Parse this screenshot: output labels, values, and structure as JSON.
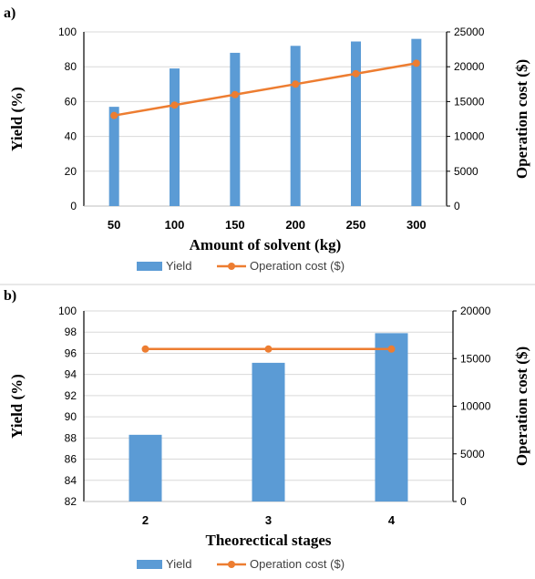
{
  "colors": {
    "bar": "#5b9bd5",
    "line": "#ed7d31",
    "grid": "#d9d9d9",
    "axis": "#000000"
  },
  "chart_data": [
    {
      "panel_label": "a)",
      "type": "bar",
      "categories": [
        "50",
        "100",
        "150",
        "200",
        "250",
        "300"
      ],
      "series": [
        {
          "name": "Yield",
          "type": "bar",
          "axis": "left",
          "values": [
            57,
            79,
            88,
            92,
            94.5,
            96
          ]
        },
        {
          "name": "Operation cost ($)",
          "type": "line",
          "axis": "right",
          "values": [
            13000,
            14500,
            16000,
            17500,
            19000,
            20500
          ]
        }
      ],
      "xlabel": "Amount of solvent (kg)",
      "ylabel": "Yield (%)",
      "y2label": "Operation cost ($)",
      "ylim": [
        0,
        100
      ],
      "y2lim": [
        0,
        25000
      ],
      "yticks": [
        "0",
        "20",
        "40",
        "60",
        "80",
        "100"
      ],
      "y2ticks": [
        "0",
        "5000",
        "10000",
        "15000",
        "20000",
        "25000"
      ],
      "grid": true,
      "legend": "bottom"
    },
    {
      "panel_label": "b)",
      "type": "bar",
      "categories": [
        "2",
        "3",
        "4"
      ],
      "series": [
        {
          "name": "Yield",
          "type": "bar",
          "axis": "left",
          "values": [
            88.3,
            95.1,
            97.9
          ]
        },
        {
          "name": "Operation cost ($)",
          "type": "line",
          "axis": "right",
          "values": [
            16000,
            16000,
            16000
          ]
        }
      ],
      "xlabel": "Theorectical stages",
      "ylabel": "Yield (%)",
      "y2label": "Operation cost ($)",
      "ylim": [
        82,
        100
      ],
      "y2lim": [
        0,
        20000
      ],
      "yticks": [
        "82",
        "84",
        "86",
        "88",
        "90",
        "92",
        "94",
        "96",
        "98",
        "100"
      ],
      "y2ticks": [
        "0",
        "5000",
        "10000",
        "15000",
        "20000"
      ],
      "grid": true,
      "legend": "bottom"
    }
  ]
}
